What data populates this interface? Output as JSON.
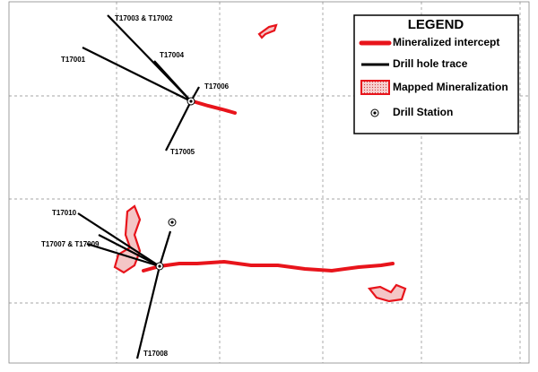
{
  "legend": {
    "title": "LEGEND",
    "items": [
      "Mineralized intercept",
      "Drill hole trace",
      "Mapped Mineralization",
      "Drill Station"
    ]
  },
  "drill_holes": [
    "T17003 & T17002",
    "T17004",
    "T17001",
    "T17006",
    "T17005",
    "T17010",
    "T17007 & T17009",
    "T17008"
  ]
}
